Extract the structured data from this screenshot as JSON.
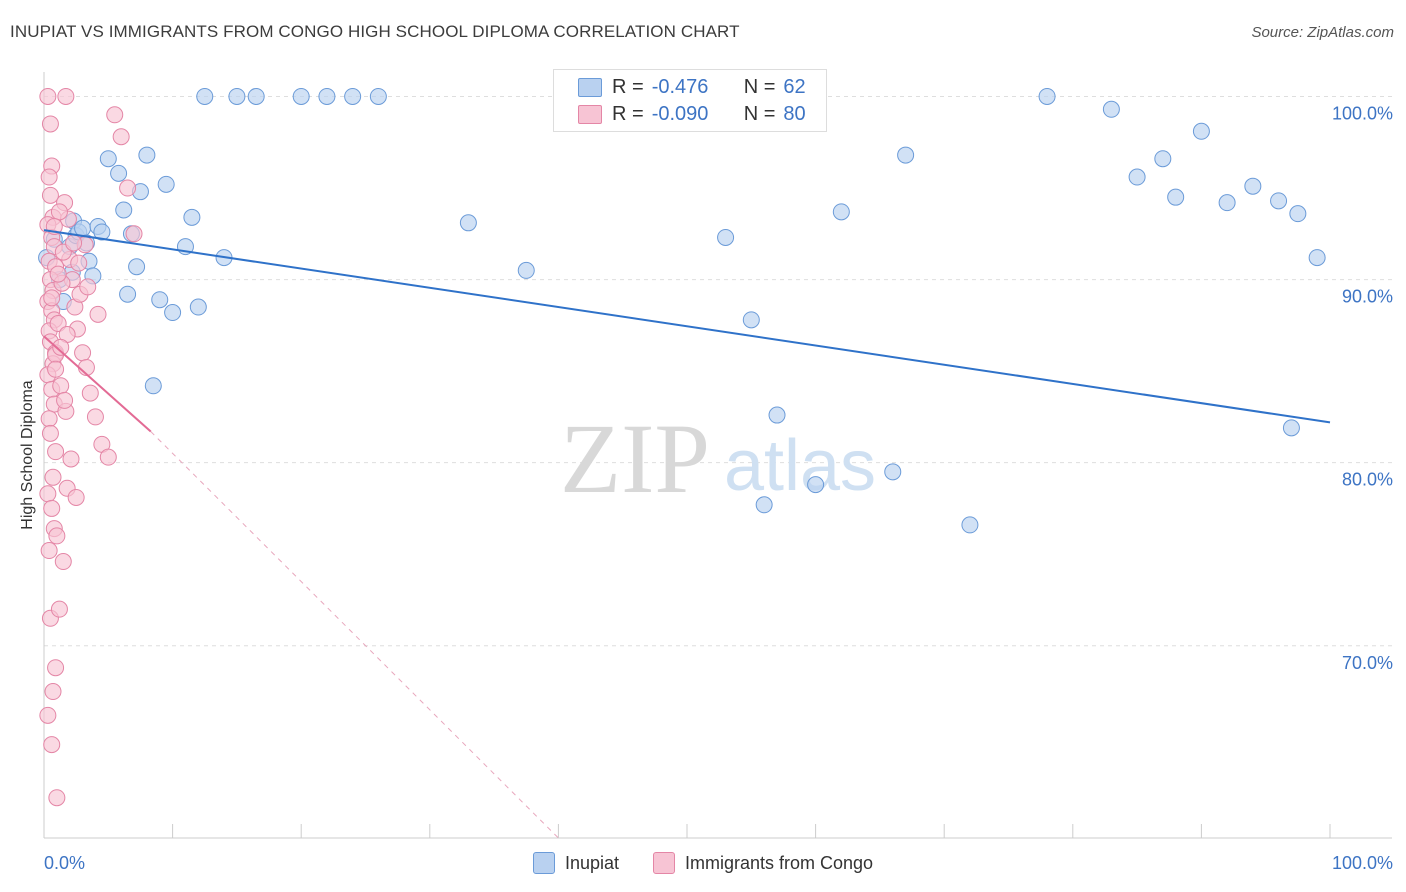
{
  "title": "INUPIAT VS IMMIGRANTS FROM CONGO HIGH SCHOOL DIPLOMA CORRELATION CHART",
  "source": "Source: ZipAtlas.com",
  "watermark": {
    "zip": "ZIP",
    "atlas": "atlas"
  },
  "stats": [
    {
      "r_label": "R =",
      "r_value": "-0.476",
      "n_label": "N =",
      "n_value": "62",
      "color": "#6b9bd8",
      "fill": "#b9d1f0"
    },
    {
      "r_label": "R =",
      "r_value": "-0.090",
      "n_label": "N =",
      "n_value": "80",
      "color": "#e486a6",
      "fill": "#f7c4d4"
    }
  ],
  "legend": [
    {
      "label": "Inupiat",
      "color": "#6b9bd8",
      "fill": "#b9d1f0"
    },
    {
      "label": "Immigrants from Congo",
      "color": "#e486a6",
      "fill": "#f7c4d4"
    }
  ],
  "chart_data": {
    "type": "scatter",
    "title": "INUPIAT VS IMMIGRANTS FROM CONGO HIGH SCHOOL DIPLOMA CORRELATION CHART",
    "xlabel": "",
    "ylabel": "High School Diploma",
    "x_tick_labels": [
      "0.0%",
      "100.0%"
    ],
    "y_tick_labels": [
      "100.0%",
      "90.0%",
      "80.0%",
      "70.0%"
    ],
    "y_ticks": [
      100,
      90,
      80,
      70
    ],
    "xlim": [
      0,
      100
    ],
    "ylim": [
      59.5,
      100.9
    ],
    "grid": true,
    "legend_position": "bottom-center",
    "series": [
      {
        "name": "Inupiat",
        "color": "#6b9bd8",
        "points": [
          [
            0.2,
            91.2
          ],
          [
            0.8,
            92.2
          ],
          [
            1.2,
            90.0
          ],
          [
            1.5,
            88.8
          ],
          [
            2.0,
            91.8
          ],
          [
            2.2,
            90.4
          ],
          [
            2.3,
            93.2
          ],
          [
            2.5,
            92.4
          ],
          [
            2.7,
            92.6
          ],
          [
            3.0,
            92.8
          ],
          [
            3.3,
            92.0
          ],
          [
            3.5,
            91.0
          ],
          [
            3.8,
            90.2
          ],
          [
            4.2,
            92.9
          ],
          [
            4.5,
            92.6
          ],
          [
            5.0,
            96.6
          ],
          [
            5.8,
            95.8
          ],
          [
            6.2,
            93.8
          ],
          [
            6.5,
            89.2
          ],
          [
            6.8,
            92.5
          ],
          [
            7.2,
            90.7
          ],
          [
            7.5,
            94.8
          ],
          [
            8.0,
            96.8
          ],
          [
            8.5,
            84.2
          ],
          [
            9.0,
            88.9
          ],
          [
            9.5,
            95.2
          ],
          [
            10.0,
            88.2
          ],
          [
            11.0,
            91.8
          ],
          [
            11.5,
            93.4
          ],
          [
            12.0,
            88.5
          ],
          [
            12.5,
            100.0
          ],
          [
            14.0,
            91.2
          ],
          [
            15.0,
            100.0
          ],
          [
            16.5,
            100.0
          ],
          [
            20.0,
            100.0
          ],
          [
            22.0,
            100.0
          ],
          [
            24.0,
            100.0
          ],
          [
            26.0,
            100.0
          ],
          [
            33.0,
            93.1
          ],
          [
            37.5,
            90.5
          ],
          [
            47.0,
            100.0
          ],
          [
            53.0,
            92.3
          ],
          [
            55.0,
            87.8
          ],
          [
            56.0,
            77.7
          ],
          [
            57.0,
            82.6
          ],
          [
            60.0,
            78.8
          ],
          [
            62.0,
            93.7
          ],
          [
            66.0,
            79.5
          ],
          [
            67.0,
            96.8
          ],
          [
            72.0,
            76.6
          ],
          [
            78.0,
            100.0
          ],
          [
            83.0,
            99.3
          ],
          [
            85.0,
            95.6
          ],
          [
            87.0,
            96.6
          ],
          [
            88.0,
            94.5
          ],
          [
            90.0,
            98.1
          ],
          [
            92.0,
            94.2
          ],
          [
            94.0,
            95.1
          ],
          [
            96.0,
            94.3
          ],
          [
            97.0,
            81.9
          ],
          [
            97.5,
            93.6
          ],
          [
            99.0,
            91.2
          ]
        ]
      },
      {
        "name": "Immigrants from Congo",
        "color": "#e486a6",
        "points": [
          [
            0.3,
            100.0
          ],
          [
            0.5,
            98.5
          ],
          [
            0.6,
            96.2
          ],
          [
            0.4,
            95.6
          ],
          [
            0.5,
            94.6
          ],
          [
            0.7,
            93.4
          ],
          [
            0.3,
            93.0
          ],
          [
            0.6,
            92.3
          ],
          [
            0.8,
            91.8
          ],
          [
            0.4,
            91.0
          ],
          [
            0.9,
            90.7
          ],
          [
            0.5,
            90.0
          ],
          [
            0.7,
            89.4
          ],
          [
            0.3,
            88.8
          ],
          [
            0.6,
            88.3
          ],
          [
            0.8,
            87.8
          ],
          [
            0.4,
            87.2
          ],
          [
            0.5,
            86.6
          ],
          [
            0.9,
            86.0
          ],
          [
            0.7,
            85.4
          ],
          [
            0.3,
            84.8
          ],
          [
            0.6,
            84.0
          ],
          [
            0.8,
            83.2
          ],
          [
            0.4,
            82.4
          ],
          [
            0.5,
            81.6
          ],
          [
            0.9,
            80.6
          ],
          [
            0.7,
            79.2
          ],
          [
            0.3,
            78.3
          ],
          [
            0.6,
            77.5
          ],
          [
            0.8,
            76.4
          ],
          [
            0.4,
            75.2
          ],
          [
            0.5,
            71.5
          ],
          [
            0.9,
            68.8
          ],
          [
            0.7,
            67.5
          ],
          [
            0.3,
            66.2
          ],
          [
            0.6,
            64.6
          ],
          [
            1.0,
            61.7
          ],
          [
            1.2,
            72.0
          ],
          [
            1.5,
            74.6
          ],
          [
            1.8,
            78.6
          ],
          [
            2.0,
            91.1
          ],
          [
            2.2,
            90.0
          ],
          [
            2.4,
            88.5
          ],
          [
            2.6,
            87.3
          ],
          [
            3.0,
            86.0
          ],
          [
            3.3,
            85.2
          ],
          [
            3.6,
            83.8
          ],
          [
            4.0,
            82.5
          ],
          [
            4.5,
            81.0
          ],
          [
            5.0,
            80.3
          ],
          [
            5.5,
            99.0
          ],
          [
            6.0,
            97.8
          ],
          [
            6.5,
            95.0
          ],
          [
            7.0,
            92.5
          ],
          [
            1.6,
            94.2
          ],
          [
            1.9,
            93.3
          ],
          [
            2.8,
            89.2
          ],
          [
            3.2,
            91.9
          ],
          [
            1.4,
            89.8
          ],
          [
            1.1,
            87.6
          ],
          [
            0.9,
            85.9
          ],
          [
            1.3,
            84.2
          ],
          [
            1.7,
            82.8
          ],
          [
            2.1,
            80.2
          ],
          [
            2.5,
            78.1
          ],
          [
            1.0,
            76.0
          ],
          [
            1.2,
            93.7
          ],
          [
            0.8,
            92.9
          ],
          [
            1.5,
            91.5
          ],
          [
            1.1,
            90.3
          ],
          [
            0.6,
            89.0
          ],
          [
            1.8,
            87.0
          ],
          [
            1.3,
            86.3
          ],
          [
            0.9,
            85.1
          ],
          [
            1.6,
            83.4
          ],
          [
            2.3,
            92.0
          ],
          [
            2.7,
            90.9
          ],
          [
            3.4,
            89.6
          ],
          [
            4.2,
            88.1
          ],
          [
            1.7,
            100.0
          ]
        ]
      }
    ],
    "trendlines": [
      {
        "series": "Inupiat",
        "x": [
          0,
          100
        ],
        "y": [
          92.7,
          82.2
        ],
        "style": "solid"
      },
      {
        "series": "Immigrants from Congo",
        "x": [
          0,
          8.3
        ],
        "y": [
          86.9,
          81.7
        ],
        "style": "solid"
      },
      {
        "series": "Immigrants from Congo",
        "x": [
          8.3,
          40
        ],
        "y": [
          81.7,
          59.5
        ],
        "style": "dashed"
      }
    ]
  }
}
